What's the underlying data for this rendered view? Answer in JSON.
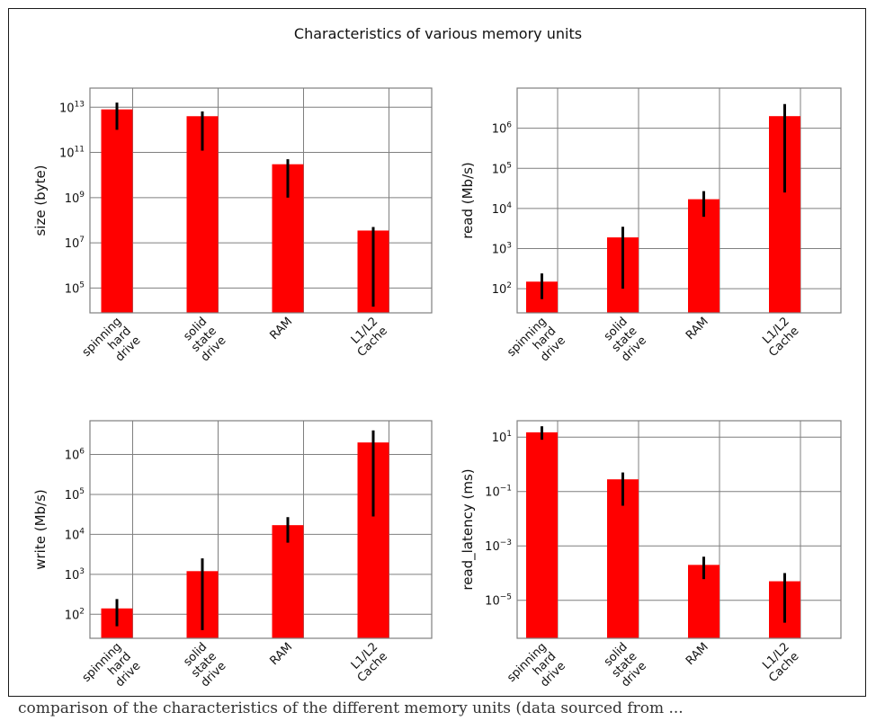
{
  "figure": {
    "title": "Characteristics of various memory units",
    "caption": "comparison of the characteristics of the different memory units (data sourced from ..."
  },
  "chart_data": [
    {
      "type": "bar",
      "y_scale": "log",
      "ylabel": "size (byte)",
      "categories": [
        "spinning hard drive",
        "solid state drive",
        "RAM",
        "L1/L2 Cache"
      ],
      "category_lines": [
        [
          "spinning",
          "hard",
          "drive"
        ],
        [
          "solid",
          "state",
          "drive"
        ],
        [
          "RAM"
        ],
        [
          "L1/L2",
          "Cache"
        ]
      ],
      "values": [
        8000000000000.0,
        4000000000000.0,
        30000000000.0,
        35000000.0
      ],
      "error_low": [
        1000000000000.0,
        120000000000.0,
        1000000000.0,
        15000.0
      ],
      "error_high": [
        16000000000000.0,
        6500000000000.0,
        50000000000.0,
        50000000.0
      ],
      "ylim": [
        8000,
        70000000000000
      ],
      "yticks": [
        100000,
        10000000,
        1000000000,
        100000000000,
        10000000000000
      ],
      "ytick_labels": [
        [
          "10",
          "5"
        ],
        [
          "10",
          "7"
        ],
        [
          "10",
          "9"
        ],
        [
          "10",
          "11"
        ],
        [
          "10",
          "13"
        ]
      ],
      "grid": true,
      "bar_color": "#ff0000",
      "error_color": "#000000"
    },
    {
      "type": "bar",
      "y_scale": "log",
      "ylabel": "read (Mb/s)",
      "categories": [
        "spinning hard drive",
        "solid state drive",
        "RAM",
        "L1/L2 Cache"
      ],
      "category_lines": [
        [
          "spinning",
          "hard",
          "drive"
        ],
        [
          "solid",
          "state",
          "drive"
        ],
        [
          "RAM"
        ],
        [
          "L1/L2",
          "Cache"
        ]
      ],
      "values": [
        150,
        1900,
        17000,
        2000000
      ],
      "error_low": [
        55,
        100,
        6200,
        25000
      ],
      "error_high": [
        240,
        3500,
        27000,
        4000000
      ],
      "ylim": [
        25,
        10000000
      ],
      "yticks": [
        100,
        1000,
        10000,
        100000,
        1000000
      ],
      "ytick_labels": [
        [
          "10",
          "2"
        ],
        [
          "10",
          "3"
        ],
        [
          "10",
          "4"
        ],
        [
          "10",
          "5"
        ],
        [
          "10",
          "6"
        ]
      ],
      "grid": true,
      "bar_color": "#ff0000",
      "error_color": "#000000"
    },
    {
      "type": "bar",
      "y_scale": "log",
      "ylabel": "write (Mb/s)",
      "categories": [
        "spinning hard drive",
        "solid state drive",
        "RAM",
        "L1/L2 Cache"
      ],
      "category_lines": [
        [
          "spinning",
          "hard",
          "drive"
        ],
        [
          "solid",
          "state",
          "drive"
        ],
        [
          "RAM"
        ],
        [
          "L1/L2",
          "Cache"
        ]
      ],
      "values": [
        140,
        1200,
        17000,
        2000000
      ],
      "error_low": [
        50,
        40,
        6200,
        28000
      ],
      "error_high": [
        240,
        2500,
        27000,
        4000000
      ],
      "ylim": [
        25,
        7000000
      ],
      "yticks": [
        100,
        1000,
        10000,
        100000,
        1000000
      ],
      "ytick_labels": [
        [
          "10",
          "2"
        ],
        [
          "10",
          "3"
        ],
        [
          "10",
          "4"
        ],
        [
          "10",
          "5"
        ],
        [
          "10",
          "6"
        ]
      ],
      "grid": true,
      "bar_color": "#ff0000",
      "error_color": "#000000"
    },
    {
      "type": "bar",
      "y_scale": "log",
      "ylabel": "read_latency (ms)",
      "categories": [
        "spinning hard drive",
        "solid state drive",
        "RAM",
        "L1/L2 Cache"
      ],
      "category_lines": [
        [
          "spinning",
          "hard",
          "drive"
        ],
        [
          "solid",
          "state",
          "drive"
        ],
        [
          "RAM"
        ],
        [
          "L1/L2",
          "Cache"
        ]
      ],
      "values": [
        15,
        0.28,
        0.0002,
        5e-05
      ],
      "error_low": [
        8,
        0.03,
        6e-05,
        1.5e-06
      ],
      "error_high": [
        25,
        0.5,
        0.0004,
        0.0001
      ],
      "ylim": [
        4e-07,
        40
      ],
      "yticks": [
        1e-05,
        0.001,
        0.1,
        10
      ],
      "ytick_labels": [
        [
          "10",
          "−5"
        ],
        [
          "10",
          "−3"
        ],
        [
          "10",
          "−1"
        ],
        [
          "10",
          "1"
        ]
      ],
      "grid": true,
      "bar_color": "#ff0000",
      "error_color": "#000000"
    }
  ]
}
